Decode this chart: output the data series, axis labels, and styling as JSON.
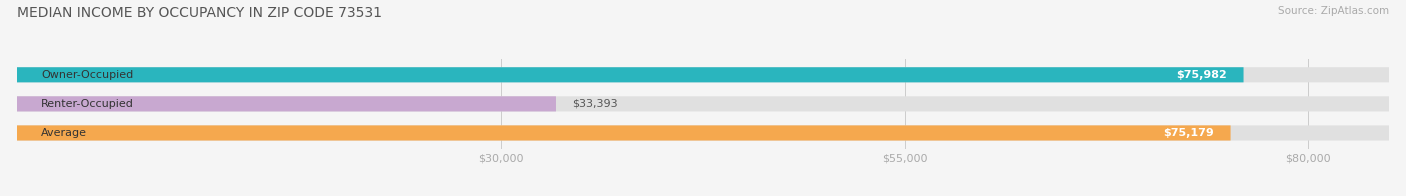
{
  "title": "MEDIAN INCOME BY OCCUPANCY IN ZIP CODE 73531",
  "source": "Source: ZipAtlas.com",
  "categories": [
    "Owner-Occupied",
    "Renter-Occupied",
    "Average"
  ],
  "values": [
    75982,
    33393,
    75179
  ],
  "bar_colors": [
    "#2ab5be",
    "#c8a8d0",
    "#f5a84e"
  ],
  "bar_labels": [
    "$75,982",
    "$33,393",
    "$75,179"
  ],
  "xlim": [
    0,
    85000
  ],
  "xticks": [
    30000,
    55000,
    80000
  ],
  "xticklabels": [
    "$30,000",
    "$55,000",
    "$80,000"
  ],
  "bg_color": "#f5f5f5",
  "bar_bg_color": "#e0e0e0",
  "title_fontsize": 10,
  "label_fontsize": 8,
  "tick_fontsize": 8,
  "source_fontsize": 7.5,
  "bar_height": 0.52,
  "label_color_inside": "#ffffff",
  "label_color_outside": "#555555",
  "category_label_color": "#333333",
  "title_color": "#555555",
  "source_color": "#aaaaaa",
  "tick_color": "#aaaaaa"
}
